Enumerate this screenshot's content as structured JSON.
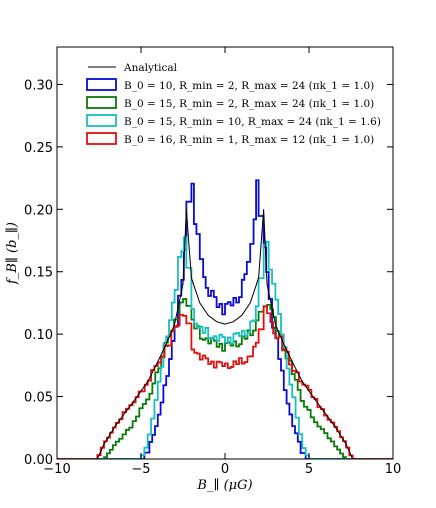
{
  "chart_data": {
    "type": "line",
    "title": "",
    "xlabel": "B_∥ (μG)",
    "ylabel": "f_B∥ (b_∥)",
    "xlim": [
      -10,
      10
    ],
    "ylim": [
      0,
      0.33
    ],
    "xticks": [
      -10,
      -5,
      0,
      5,
      10
    ],
    "xtick_labels": [
      "−10",
      "−5",
      "0",
      "5",
      "10"
    ],
    "yticks": [
      0.0,
      0.05,
      0.1,
      0.15,
      0.2,
      0.25,
      0.3
    ],
    "ytick_labels": [
      "0.00",
      "0.05",
      "0.10",
      "0.15",
      "0.20",
      "0.25",
      "0.30"
    ],
    "grid": false,
    "legend_position": "top-left",
    "series": [
      {
        "name": "Analytical",
        "style": "line",
        "color": "#000000",
        "x": [
          -10,
          -7.6,
          -7.2,
          -6.5,
          -5.5,
          -4.6,
          -4.0,
          -3.5,
          -3.0,
          -2.5,
          -2.3,
          -2.0,
          -1.5,
          -1.0,
          -0.5,
          0,
          0.5,
          1.0,
          1.5,
          2.0,
          2.3,
          2.5,
          3.0,
          3.5,
          4.0,
          4.6,
          5.5,
          6.5,
          7.2,
          7.6,
          10
        ],
        "y": [
          0,
          0,
          0.012,
          0.027,
          0.045,
          0.062,
          0.078,
          0.092,
          0.108,
          0.14,
          0.2,
          0.145,
          0.125,
          0.115,
          0.11,
          0.108,
          0.11,
          0.115,
          0.125,
          0.145,
          0.2,
          0.14,
          0.108,
          0.092,
          0.078,
          0.062,
          0.045,
          0.027,
          0.012,
          0,
          0
        ]
      },
      {
        "name": "B_0 = 10, R_min = 2, R_max = 24 (πk_1 = 1.0)",
        "style": "step",
        "color": "#0a0ad2",
        "x": [
          -10,
          -4.8,
          -4.5,
          -4.0,
          -3.5,
          -3.0,
          -2.6,
          -2.3,
          -2.0,
          -1.7,
          -1.3,
          -1.0,
          -0.5,
          0,
          0.5,
          1.0,
          1.3,
          1.7,
          2.0,
          2.3,
          2.6,
          3.0,
          3.5,
          4.0,
          4.5,
          4.8,
          10
        ],
        "y": [
          0,
          0,
          0.01,
          0.03,
          0.062,
          0.1,
          0.135,
          0.175,
          0.226,
          0.185,
          0.155,
          0.135,
          0.125,
          0.12,
          0.125,
          0.135,
          0.155,
          0.185,
          0.226,
          0.175,
          0.135,
          0.1,
          0.062,
          0.03,
          0.01,
          0,
          0
        ]
      },
      {
        "name": "B_0 = 15, R_min = 2, R_max = 24 (πk_1 = 1.0)",
        "style": "step",
        "color": "#0a7a0a",
        "x": [
          -10,
          -7.2,
          -6.5,
          -5.5,
          -4.5,
          -3.8,
          -3.2,
          -2.7,
          -2.3,
          -2.0,
          -1.5,
          -1.0,
          -0.5,
          0,
          0.5,
          1.0,
          1.5,
          2.0,
          2.3,
          2.7,
          3.2,
          3.8,
          4.5,
          5.5,
          6.5,
          7.2,
          10
        ],
        "y": [
          0,
          0,
          0.012,
          0.028,
          0.05,
          0.08,
          0.1,
          0.12,
          0.128,
          0.112,
          0.1,
          0.095,
          0.092,
          0.09,
          0.092,
          0.095,
          0.1,
          0.112,
          0.128,
          0.12,
          0.1,
          0.08,
          0.05,
          0.028,
          0.012,
          0,
          0
        ]
      },
      {
        "name": "B_0 = 15, R_min = 10, R_max = 24 (πk_1 = 1.6)",
        "style": "step",
        "color": "#1abfbf",
        "x": [
          -10,
          -5.0,
          -4.6,
          -4.0,
          -3.5,
          -3.0,
          -2.6,
          -2.3,
          -2.0,
          -1.5,
          -1.0,
          -0.5,
          0,
          0.5,
          1.0,
          1.5,
          2.0,
          2.3,
          2.6,
          3.0,
          3.5,
          4.0,
          4.6,
          5.0,
          10
        ],
        "y": [
          0,
          0,
          0.012,
          0.055,
          0.095,
          0.13,
          0.165,
          0.178,
          0.12,
          0.105,
          0.1,
          0.097,
          0.095,
          0.097,
          0.1,
          0.105,
          0.12,
          0.178,
          0.165,
          0.13,
          0.095,
          0.055,
          0.012,
          0,
          0
        ]
      },
      {
        "name": "B_0 = 16, R_min = 1, R_max = 12 (πk_1 = 1.0)",
        "style": "step",
        "color": "#e01010",
        "x": [
          -10,
          -7.6,
          -7.2,
          -6.5,
          -5.5,
          -4.6,
          -3.8,
          -3.2,
          -2.7,
          -2.3,
          -2.0,
          -1.5,
          -1.0,
          -0.5,
          0,
          0.5,
          1.0,
          1.5,
          2.0,
          2.3,
          2.7,
          3.2,
          3.8,
          4.6,
          5.5,
          6.5,
          7.2,
          7.6,
          10
        ],
        "y": [
          0,
          0,
          0.012,
          0.027,
          0.045,
          0.062,
          0.08,
          0.098,
          0.11,
          0.122,
          0.092,
          0.082,
          0.078,
          0.076,
          0.075,
          0.076,
          0.078,
          0.082,
          0.092,
          0.122,
          0.11,
          0.098,
          0.08,
          0.062,
          0.045,
          0.027,
          0.012,
          0,
          0
        ]
      }
    ]
  },
  "colors": {
    "axis": "#000000",
    "background": "#ffffff"
  }
}
